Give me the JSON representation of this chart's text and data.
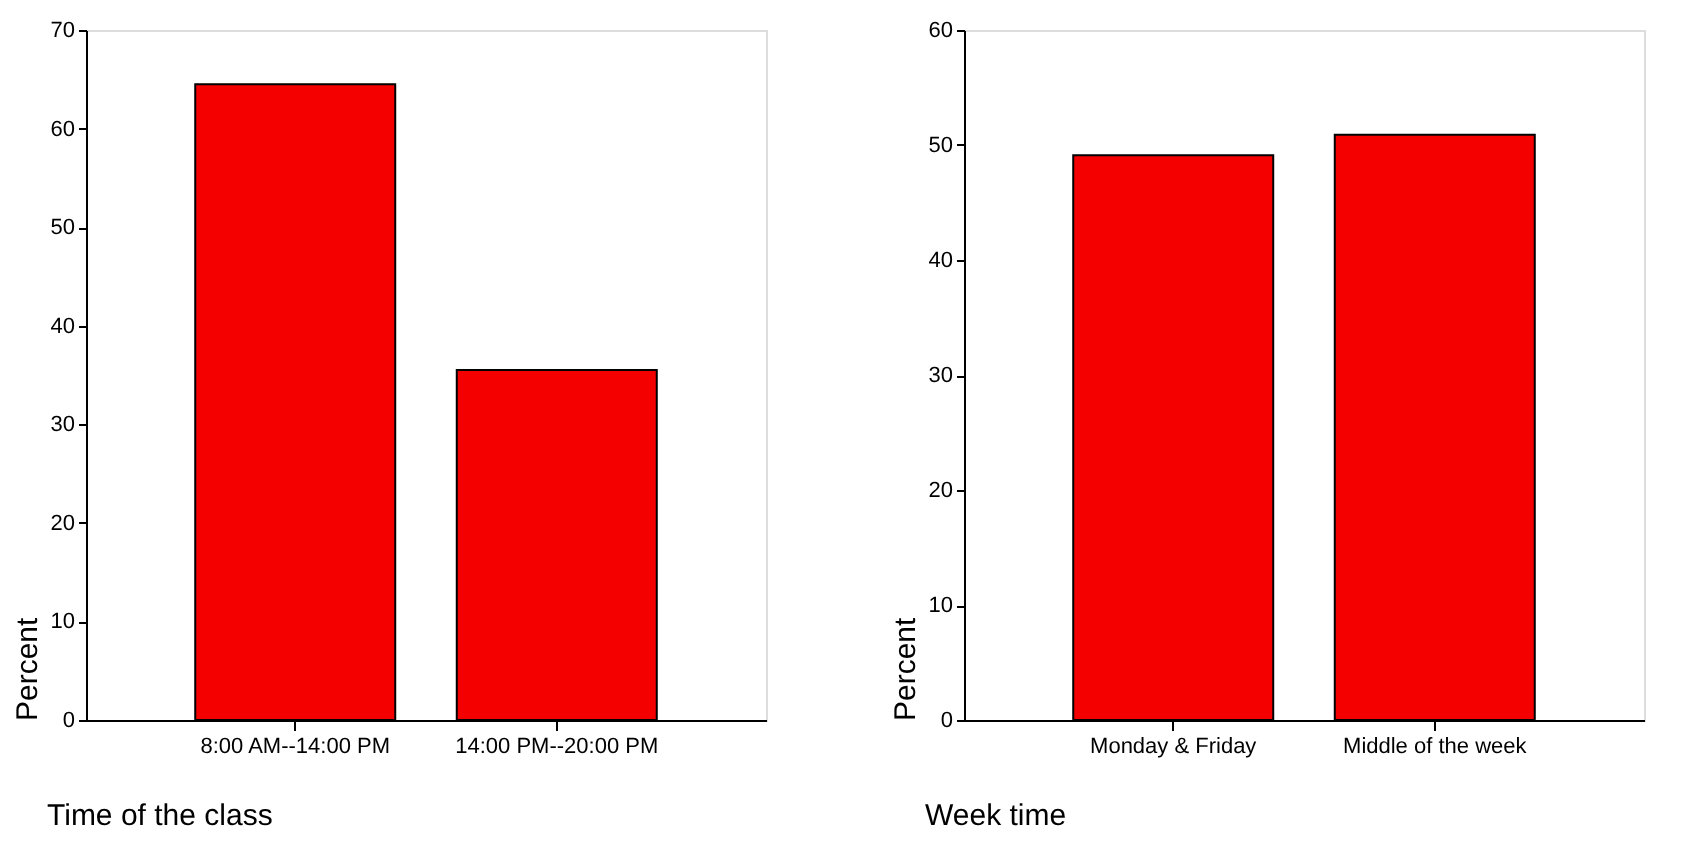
{
  "chart_data": [
    {
      "type": "bar",
      "xlabel": "Time of the class",
      "ylabel": "Percent",
      "categories": [
        "8:00 AM--14:00 PM",
        "14:00 PM--20:00 PM"
      ],
      "values": [
        64.5,
        35.5
      ],
      "color": "#f40000",
      "ylim": [
        0,
        70
      ],
      "yticks": [
        0,
        10,
        20,
        30,
        40,
        50,
        60,
        70
      ],
      "grid": false
    },
    {
      "type": "bar",
      "xlabel": "Week time",
      "ylabel": "Percent",
      "categories": [
        "Monday & Friday",
        "Middle of the week"
      ],
      "values": [
        49.1,
        50.9
      ],
      "color": "#f40000",
      "ylim": [
        0,
        60
      ],
      "yticks": [
        0,
        10,
        20,
        30,
        40,
        50,
        60
      ],
      "grid": false
    }
  ]
}
